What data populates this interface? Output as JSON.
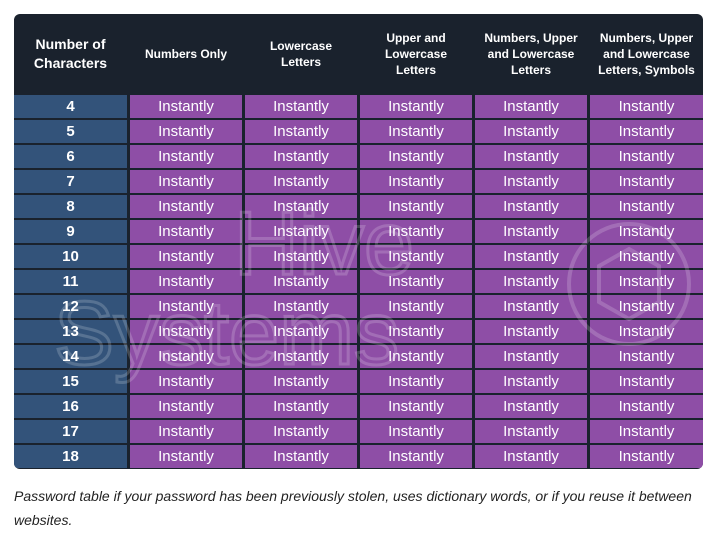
{
  "chart_data": {
    "type": "table",
    "corner_header": "Number of Characters",
    "column_headers": [
      "Numbers Only",
      "Lowercase Letters",
      "Upper and Lowercase Letters",
      "Numbers, Upper and Lowercase Letters",
      "Numbers, Upper and Lowercase Letters, Symbols"
    ],
    "rows": [
      {
        "label": "4",
        "values": [
          "Instantly",
          "Instantly",
          "Instantly",
          "Instantly",
          "Instantly"
        ]
      },
      {
        "label": "5",
        "values": [
          "Instantly",
          "Instantly",
          "Instantly",
          "Instantly",
          "Instantly"
        ]
      },
      {
        "label": "6",
        "values": [
          "Instantly",
          "Instantly",
          "Instantly",
          "Instantly",
          "Instantly"
        ]
      },
      {
        "label": "7",
        "values": [
          "Instantly",
          "Instantly",
          "Instantly",
          "Instantly",
          "Instantly"
        ]
      },
      {
        "label": "8",
        "values": [
          "Instantly",
          "Instantly",
          "Instantly",
          "Instantly",
          "Instantly"
        ]
      },
      {
        "label": "9",
        "values": [
          "Instantly",
          "Instantly",
          "Instantly",
          "Instantly",
          "Instantly"
        ]
      },
      {
        "label": "10",
        "values": [
          "Instantly",
          "Instantly",
          "Instantly",
          "Instantly",
          "Instantly"
        ]
      },
      {
        "label": "11",
        "values": [
          "Instantly",
          "Instantly",
          "Instantly",
          "Instantly",
          "Instantly"
        ]
      },
      {
        "label": "12",
        "values": [
          "Instantly",
          "Instantly",
          "Instantly",
          "Instantly",
          "Instantly"
        ]
      },
      {
        "label": "13",
        "values": [
          "Instantly",
          "Instantly",
          "Instantly",
          "Instantly",
          "Instantly"
        ]
      },
      {
        "label": "14",
        "values": [
          "Instantly",
          "Instantly",
          "Instantly",
          "Instantly",
          "Instantly"
        ]
      },
      {
        "label": "15",
        "values": [
          "Instantly",
          "Instantly",
          "Instantly",
          "Instantly",
          "Instantly"
        ]
      },
      {
        "label": "16",
        "values": [
          "Instantly",
          "Instantly",
          "Instantly",
          "Instantly",
          "Instantly"
        ]
      },
      {
        "label": "17",
        "values": [
          "Instantly",
          "Instantly",
          "Instantly",
          "Instantly",
          "Instantly"
        ]
      },
      {
        "label": "18",
        "values": [
          "Instantly",
          "Instantly",
          "Instantly",
          "Instantly",
          "Instantly"
        ]
      }
    ]
  },
  "watermark": {
    "line1": "Hive",
    "line2": "Systems"
  },
  "caption": "Password table if your password has been previously stolen, uses dictionary words, or if you reuse it between websites.",
  "colors": {
    "header_bg": "#1a222d",
    "row_label_bg": "#33537a",
    "cell_bg": "#8e4ea6",
    "text": "#ffffff"
  }
}
